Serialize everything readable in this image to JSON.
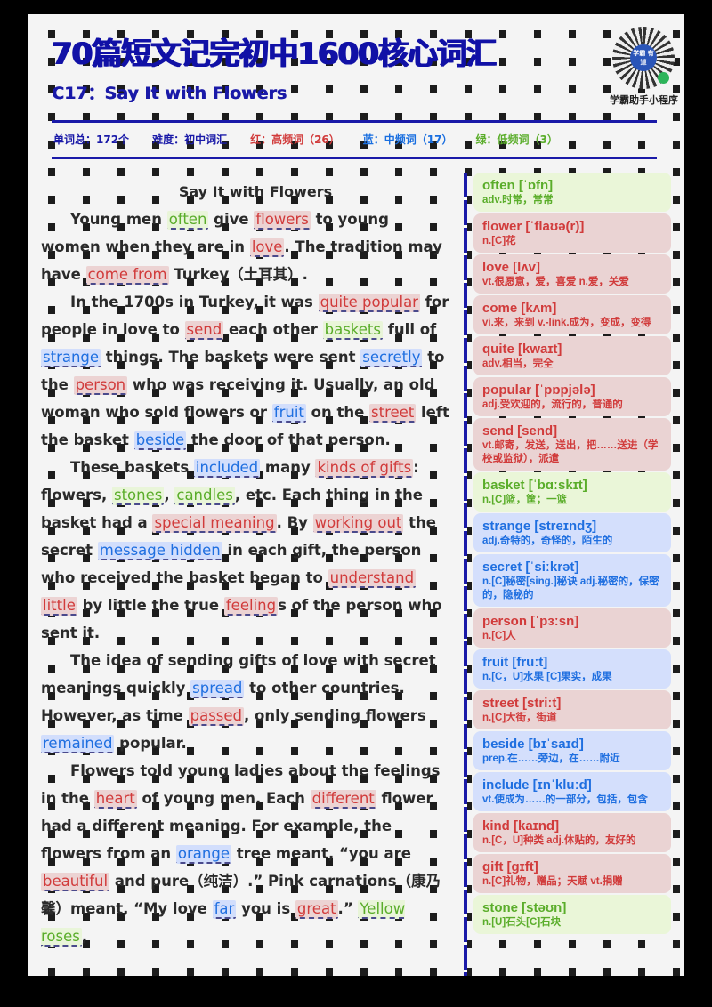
{
  "header": {
    "title": "70篇短文记完初中1600核心词汇",
    "subtitle": "C17：Say It with Flowers",
    "qr_center_text": "学霸 有道",
    "qr_label": "学霸助手小程序"
  },
  "stats": {
    "total": "单词总：172个",
    "level": "难度：初中词汇",
    "red": "红：高频词（26）",
    "blue": "蓝：中频词（17）",
    "green": "绿：低频词（3）"
  },
  "colors": {
    "title_blue": "#1a1aa8",
    "red": "#d13b3b",
    "blue": "#1f6fe0",
    "green": "#5aad2a",
    "red_bg": "#ead3d3",
    "blue_bg": "#d4dffc",
    "green_bg": "#eaf6d8"
  },
  "passage": {
    "title": "Say It with Flowers",
    "paragraphs": [
      [
        {
          "t": "Young men "
        },
        {
          "h": "often",
          "c": "green"
        },
        {
          "t": " give "
        },
        {
          "h": "flowers",
          "c": "red"
        },
        {
          "t": " to young women when they are in "
        },
        {
          "h": "love",
          "c": "red"
        },
        {
          "t": ". The tradition may have "
        },
        {
          "h": "come from",
          "c": "red"
        },
        {
          "t": " Turkey（土耳其）."
        }
      ],
      [
        {
          "t": "In the 1700s in Turkey, it was "
        },
        {
          "h": "quite popular",
          "c": "red"
        },
        {
          "t": " for people in love to "
        },
        {
          "h": "send",
          "c": "red"
        },
        {
          "t": " each other "
        },
        {
          "h": "baskets",
          "c": "green"
        },
        {
          "t": " full of "
        },
        {
          "h": "strange",
          "c": "blue"
        },
        {
          "t": " things. The baskets were sent "
        },
        {
          "h": "secretly",
          "c": "blue"
        },
        {
          "t": " to the "
        },
        {
          "h": "person",
          "c": "red"
        },
        {
          "t": " who was receiving it. Usually, an old woman who sold flowers or "
        },
        {
          "h": "fruit",
          "c": "blue"
        },
        {
          "t": " on the "
        },
        {
          "h": "street",
          "c": "red"
        },
        {
          "t": " left the basket "
        },
        {
          "h": "beside",
          "c": "blue"
        },
        {
          "t": " the door of that person."
        }
      ],
      [
        {
          "t": "These baskets "
        },
        {
          "h": "included",
          "c": "blue"
        },
        {
          "t": " many "
        },
        {
          "h": "kinds of gifts",
          "c": "red"
        },
        {
          "t": ": flowers, "
        },
        {
          "h": "stones",
          "c": "green"
        },
        {
          "t": ", "
        },
        {
          "h": "candles",
          "c": "green"
        },
        {
          "t": ", etc. Each thing in the basket had a "
        },
        {
          "h": "special meaning",
          "c": "red"
        },
        {
          "t": ". By "
        },
        {
          "h": "working out",
          "c": "red"
        },
        {
          "t": " the secret "
        },
        {
          "h": "message hidden",
          "c": "blue"
        },
        {
          "t": " in each gift, the person who received the basket began to "
        },
        {
          "h": "understand",
          "c": "red"
        },
        {
          "t": " "
        },
        {
          "h": "little",
          "c": "red"
        },
        {
          "t": " by little the true "
        },
        {
          "h": "feeling",
          "c": "red"
        },
        {
          "t": "s of the person who sent it."
        }
      ],
      [
        {
          "t": "The idea of sending gifts of love with secret meanings quickly "
        },
        {
          "h": "spread",
          "c": "blue"
        },
        {
          "t": " to other countries. However, as time "
        },
        {
          "h": "passed",
          "c": "red"
        },
        {
          "t": ", only sending flowers "
        },
        {
          "h": "remained",
          "c": "blue"
        },
        {
          "t": " popular."
        }
      ],
      [
        {
          "t": "Flowers told young ladies about the feelings in the "
        },
        {
          "h": "heart",
          "c": "red"
        },
        {
          "t": " of young men. Each "
        },
        {
          "h": "different",
          "c": "red"
        },
        {
          "t": " flower had a different meaning. For example, the flowers from an "
        },
        {
          "h": "orange",
          "c": "blue"
        },
        {
          "t": " tree meant, “you are "
        },
        {
          "h": "beautiful",
          "c": "red"
        },
        {
          "t": " and pure（纯洁）.” Pink carnations（康乃馨）meant, “My love "
        },
        {
          "h": "far",
          "c": "blue"
        },
        {
          "t": " you is "
        },
        {
          "h": "great",
          "c": "red"
        },
        {
          "t": ".” "
        },
        {
          "h": "Yellow roses",
          "c": "green"
        },
        {
          "t": ","
        }
      ]
    ]
  },
  "vocab": [
    {
      "word": "often [ˈɒfn]",
      "def": "adv.时常，常常",
      "color": "green"
    },
    {
      "word": "flower [ˈflaʊə(r)]",
      "def": "n.[C]花",
      "color": "red"
    },
    {
      "word": "love [lʌv]",
      "def": "vt.很愿意，爱，喜爱 n.爱，关爱",
      "color": "red"
    },
    {
      "word": "come [kʌm]",
      "def": "vi.来，来到 v.-link.成为，变成，变得",
      "color": "red"
    },
    {
      "word": "quite [kwaɪt]",
      "def": "adv.相当，完全",
      "color": "red"
    },
    {
      "word": "popular [ˈpɒpjələ]",
      "def": "adj.受欢迎的，流行的，普通的",
      "color": "red"
    },
    {
      "word": "send [send]",
      "def": "vt.邮寄，发送，送出，把……送进（学校或监狱），派遣",
      "color": "red"
    },
    {
      "word": "basket [ˈbɑːskɪt]",
      "def": "n.[C]篮，筐；一篮",
      "color": "green"
    },
    {
      "word": "strange [streɪndʒ]",
      "def": "adj.奇特的，奇怪的，陌生的",
      "color": "blue"
    },
    {
      "word": "secret [ˈsiːkrət]",
      "def": "n.[C]秘密[sing.]秘诀 adj.秘密的，保密的，隐秘的",
      "color": "blue"
    },
    {
      "word": "person [ˈpɜːsn]",
      "def": "n.[C]人",
      "color": "red"
    },
    {
      "word": "fruit [fruːt]",
      "def": "n.[C，U]水果 [C]果实，成果",
      "color": "blue"
    },
    {
      "word": "street [striːt]",
      "def": "n.[C]大街，街道",
      "color": "red"
    },
    {
      "word": "beside [bɪˈsaɪd]",
      "def": "prep.在……旁边，在……附近",
      "color": "blue"
    },
    {
      "word": "include [ɪnˈkluːd]",
      "def": "vt.使成为……的一部分，包括，包含",
      "color": "blue"
    },
    {
      "word": "kind [kaɪnd]",
      "def": "n.[C，U]种类 adj.体贴的，友好的",
      "color": "red"
    },
    {
      "word": "gift [gɪft]",
      "def": "n.[C]礼物，赠品；天赋 vt.捐赠",
      "color": "red"
    },
    {
      "word": "stone [stəʊn]",
      "def": "n.[U]石头[C]石块",
      "color": "green"
    }
  ]
}
